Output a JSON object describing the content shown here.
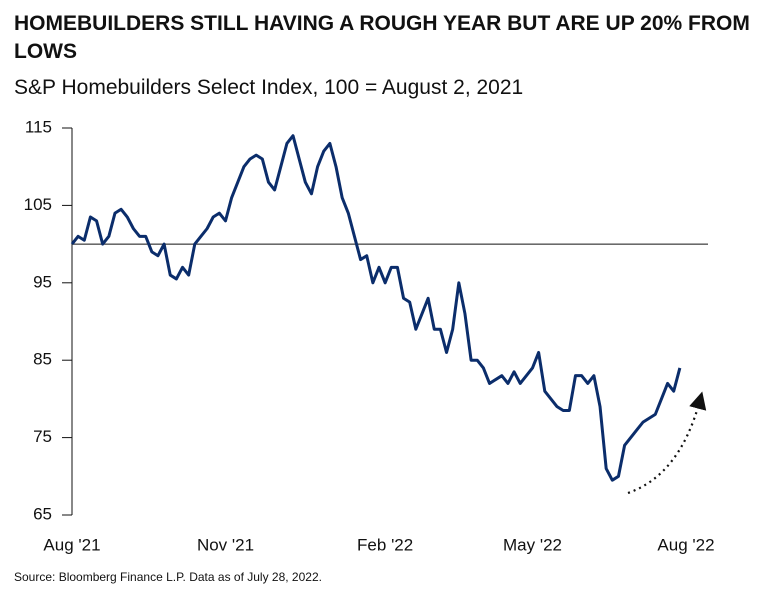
{
  "chart_data": {
    "type": "line",
    "title": "HOMEBUILDERS STILL HAVING A ROUGH YEAR BUT ARE UP 20% FROM LOWS",
    "subtitle": "S&P Homebuilders Select Index, 100 = August 2, 2021",
    "source": "Source: Bloomberg Finance L.P. Data as of July 28, 2022.",
    "categories": [
      "Aug '21",
      null,
      null,
      null,
      null,
      null,
      null,
      null,
      null,
      null,
      null,
      null,
      null,
      null,
      null,
      null,
      null,
      null,
      null,
      null,
      null,
      null,
      null,
      null,
      null,
      "Nov '21",
      null,
      null,
      null,
      null,
      null,
      null,
      null,
      null,
      null,
      null,
      null,
      null,
      null,
      null,
      null,
      null,
      null,
      null,
      null,
      null,
      null,
      null,
      null,
      null,
      null,
      "Feb '22",
      null,
      null,
      null,
      null,
      null,
      null,
      null,
      null,
      null,
      null,
      null,
      null,
      null,
      null,
      null,
      null,
      null,
      null,
      null,
      null,
      null,
      null,
      null,
      "May '22",
      null,
      null,
      null,
      null,
      null,
      null,
      null,
      null,
      null,
      null,
      null,
      null,
      null,
      null,
      null,
      null,
      null,
      null,
      null,
      null,
      null,
      null,
      null,
      null,
      "Aug '22"
    ],
    "values": [
      100,
      101,
      100.5,
      103.5,
      103,
      100,
      101,
      104,
      104.5,
      103.5,
      102,
      101,
      101,
      99,
      98.5,
      100,
      96,
      95.5,
      97,
      96,
      100,
      101,
      102,
      103.5,
      104,
      103,
      106,
      108,
      110,
      111,
      111.5,
      111,
      108,
      107,
      110,
      113,
      114,
      111,
      108,
      106.5,
      110,
      112,
      113,
      110,
      106,
      104,
      101,
      98,
      98.5,
      95,
      97,
      95,
      97,
      97,
      93,
      92.5,
      89,
      91,
      93,
      89,
      89,
      86,
      89,
      95,
      91,
      85,
      85,
      84,
      82,
      82.5,
      83,
      82,
      83.5,
      82,
      83,
      84,
      86,
      81,
      80,
      79,
      78.5,
      78.5,
      83,
      83,
      82,
      83,
      79,
      71,
      69.5,
      70,
      74,
      75,
      76,
      77,
      77.5,
      78,
      80,
      82,
      81,
      84,
      null
    ],
    "color": "#0b2d6b",
    "reference_line": 100,
    "ylim": [
      65,
      115
    ],
    "yticks": [
      65,
      75,
      85,
      95,
      105,
      115
    ]
  }
}
